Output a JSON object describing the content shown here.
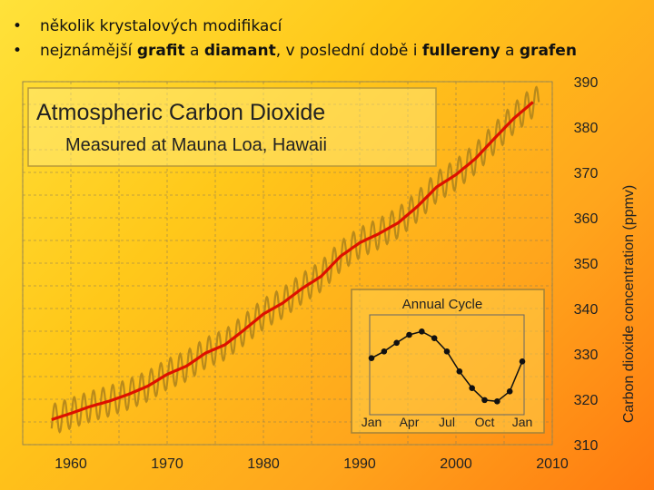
{
  "bullets": [
    {
      "parts": [
        {
          "t": "několik krystalových modifikací",
          "b": false
        }
      ]
    },
    {
      "parts": [
        {
          "t": "nejznámější ",
          "b": false
        },
        {
          "t": "grafit",
          "b": true
        },
        {
          "t": " a ",
          "b": false
        },
        {
          "t": "diamant",
          "b": true
        },
        {
          "t": ", v poslední době i ",
          "b": false
        },
        {
          "t": "fullereny",
          "b": true
        },
        {
          "t": " a ",
          "b": false
        },
        {
          "t": "grafen",
          "b": true
        }
      ]
    }
  ],
  "bullet_symbol": "•",
  "chart_data": {
    "type": "line",
    "title": "Atmospheric Carbon Dioxide",
    "subtitle": "Measured at Mauna Loa, Hawaii",
    "ylabel": "Carbon dioxide concentration (ppmv)",
    "xlim": [
      1955,
      2010
    ],
    "ylim": [
      310,
      390
    ],
    "x_ticks": [
      1960,
      1970,
      1980,
      1990,
      2000,
      2010
    ],
    "y_ticks": [
      310,
      320,
      330,
      340,
      350,
      360,
      370,
      380,
      390
    ],
    "grid": true,
    "series": [
      {
        "role": "trend",
        "color": "#dd1100",
        "x": [
          1958,
          1960,
          1962,
          1964,
          1966,
          1968,
          1970,
          1972,
          1974,
          1976,
          1978,
          1980,
          1982,
          1984,
          1986,
          1988,
          1990,
          1992,
          1994,
          1996,
          1998,
          2000,
          2002,
          2004,
          2006,
          2008
        ],
        "values": [
          315.5,
          316.9,
          318.4,
          319.6,
          321.1,
          322.9,
          325.5,
          327.3,
          330.2,
          332.0,
          335.3,
          338.8,
          341.2,
          344.4,
          347.1,
          351.5,
          354.5,
          356.5,
          358.9,
          362.5,
          366.8,
          369.5,
          373.0,
          377.5,
          381.9,
          385.5
        ]
      },
      {
        "role": "seasonal",
        "color": "#b88a1c",
        "seasonal_amplitude": 3.3
      }
    ],
    "inset": {
      "title": "Annual Cycle",
      "type": "line",
      "categories": [
        "Jan",
        "Apr",
        "Jul",
        "Oct",
        "Jan"
      ],
      "months": [
        1,
        2,
        3,
        4,
        5,
        6,
        7,
        8,
        9,
        10,
        11,
        12,
        13
      ],
      "values": [
        0.5,
        1.5,
        2.8,
        4.0,
        4.5,
        3.5,
        1.5,
        -1.5,
        -4.0,
        -5.8,
        -6.0,
        -4.5,
        0.0
      ],
      "ylim": [
        -8,
        7
      ]
    }
  }
}
